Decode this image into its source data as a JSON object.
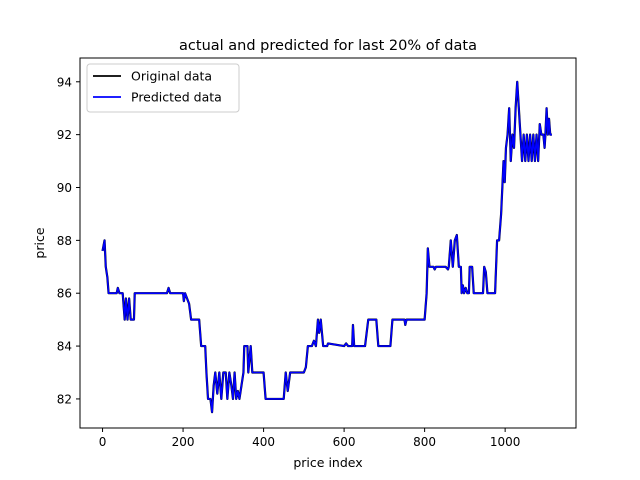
{
  "chart_data": {
    "type": "line",
    "title": "actual and predicted for last 20% of data",
    "xlabel": "price index",
    "ylabel": "price",
    "xlim": [
      -56,
      1176
    ],
    "ylim": [
      80.9,
      94.9
    ],
    "xticks": [
      0,
      200,
      400,
      600,
      800,
      1000
    ],
    "yticks": [
      82,
      84,
      86,
      88,
      90,
      92,
      94
    ],
    "grid": false,
    "legend": "top-left",
    "series": [
      {
        "name": "Original data",
        "color": "#000000",
        "points": [
          [
            0,
            87.6
          ],
          [
            5,
            88.0
          ],
          [
            8,
            87.0
          ],
          [
            12,
            86.6
          ],
          [
            15,
            86.0
          ],
          [
            35,
            86.0
          ],
          [
            38,
            86.2
          ],
          [
            42,
            86.0
          ],
          [
            50,
            86.0
          ],
          [
            55,
            85.0
          ],
          [
            58,
            85.8
          ],
          [
            62,
            85.0
          ],
          [
            66,
            85.8
          ],
          [
            70,
            85.0
          ],
          [
            78,
            85.0
          ],
          [
            80,
            86.0
          ],
          [
            160,
            86.0
          ],
          [
            164,
            86.2
          ],
          [
            168,
            86.0
          ],
          [
            200,
            86.0
          ],
          [
            202,
            85.7
          ],
          [
            205,
            86.0
          ],
          [
            215,
            85.6
          ],
          [
            220,
            85.0
          ],
          [
            240,
            85.0
          ],
          [
            245,
            84.0
          ],
          [
            255,
            84.0
          ],
          [
            258,
            83.0
          ],
          [
            262,
            82.0
          ],
          [
            268,
            82.0
          ],
          [
            272,
            81.5
          ],
          [
            276,
            82.5
          ],
          [
            280,
            83.0
          ],
          [
            285,
            82.2
          ],
          [
            290,
            83.0
          ],
          [
            295,
            82.0
          ],
          [
            300,
            83.0
          ],
          [
            306,
            83.0
          ],
          [
            310,
            82.0
          ],
          [
            315,
            83.0
          ],
          [
            320,
            82.5
          ],
          [
            324,
            82.0
          ],
          [
            328,
            83.0
          ],
          [
            332,
            82.0
          ],
          [
            336,
            82.3
          ],
          [
            340,
            82.0
          ],
          [
            350,
            83.0
          ],
          [
            352,
            84.0
          ],
          [
            360,
            84.0
          ],
          [
            362,
            83.0
          ],
          [
            368,
            84.0
          ],
          [
            372,
            83.0
          ],
          [
            400,
            83.0
          ],
          [
            405,
            82.0
          ],
          [
            450,
            82.0
          ],
          [
            455,
            83.0
          ],
          [
            460,
            82.3
          ],
          [
            466,
            83.0
          ],
          [
            500,
            83.0
          ],
          [
            505,
            83.2
          ],
          [
            510,
            84.0
          ],
          [
            520,
            84.0
          ],
          [
            525,
            84.2
          ],
          [
            530,
            84.0
          ],
          [
            535,
            85.0
          ],
          [
            538,
            84.5
          ],
          [
            542,
            85.0
          ],
          [
            548,
            84.0
          ],
          [
            558,
            84.0
          ],
          [
            560,
            84.1
          ],
          [
            600,
            84.0
          ],
          [
            605,
            84.1
          ],
          [
            610,
            84.0
          ],
          [
            620,
            84.0
          ],
          [
            622,
            84.8
          ],
          [
            625,
            84.0
          ],
          [
            652,
            84.0
          ],
          [
            660,
            85.0
          ],
          [
            680,
            85.0
          ],
          [
            685,
            84.0
          ],
          [
            715,
            84.0
          ],
          [
            720,
            85.0
          ],
          [
            750,
            85.0
          ],
          [
            752,
            84.8
          ],
          [
            755,
            85.0
          ],
          [
            800,
            85.0
          ],
          [
            805,
            86.0
          ],
          [
            808,
            87.7
          ],
          [
            812,
            87.0
          ],
          [
            822,
            87.0
          ],
          [
            825,
            86.9
          ],
          [
            828,
            87.0
          ],
          [
            852,
            87.0
          ],
          [
            858,
            86.9
          ],
          [
            860,
            87.0
          ],
          [
            865,
            88.0
          ],
          [
            870,
            87.0
          ],
          [
            875,
            88.0
          ],
          [
            880,
            88.2
          ],
          [
            885,
            87.0
          ],
          [
            890,
            87.0
          ],
          [
            892,
            86.0
          ],
          [
            895,
            86.3
          ],
          [
            898,
            86.0
          ],
          [
            902,
            86.2
          ],
          [
            906,
            86.0
          ],
          [
            910,
            86.0
          ],
          [
            912,
            87.0
          ],
          [
            918,
            87.0
          ],
          [
            922,
            86.0
          ],
          [
            945,
            86.0
          ],
          [
            948,
            87.0
          ],
          [
            952,
            86.8
          ],
          [
            956,
            86.0
          ],
          [
            975,
            86.0
          ],
          [
            980,
            88.0
          ],
          [
            985,
            88.0
          ],
          [
            990,
            89.0
          ],
          [
            993,
            90.0
          ],
          [
            996,
            91.0
          ],
          [
            999,
            90.2
          ],
          [
            1002,
            91.5
          ],
          [
            1006,
            92.0
          ],
          [
            1010,
            93.0
          ],
          [
            1014,
            91.0
          ],
          [
            1018,
            92.0
          ],
          [
            1022,
            91.5
          ],
          [
            1026,
            93.0
          ],
          [
            1030,
            94.0
          ],
          [
            1034,
            93.0
          ],
          [
            1038,
            92.0
          ],
          [
            1042,
            91.0
          ],
          [
            1046,
            92.0
          ],
          [
            1050,
            91.0
          ],
          [
            1054,
            92.0
          ],
          [
            1058,
            91.0
          ],
          [
            1062,
            92.0
          ],
          [
            1066,
            91.0
          ],
          [
            1070,
            92.0
          ],
          [
            1074,
            91.0
          ],
          [
            1078,
            92.0
          ],
          [
            1082,
            91.0
          ],
          [
            1086,
            92.4
          ],
          [
            1090,
            92.0
          ],
          [
            1095,
            92.0
          ],
          [
            1098,
            91.5
          ],
          [
            1100,
            92.0
          ],
          [
            1103,
            93.0
          ],
          [
            1106,
            92.0
          ],
          [
            1109,
            92.6
          ],
          [
            1112,
            92.0
          ],
          [
            1116,
            92.0
          ]
        ]
      },
      {
        "name": "Predicted data",
        "color": "#0000ff",
        "points": [
          [
            0,
            87.6
          ],
          [
            5,
            88.0
          ],
          [
            8,
            87.0
          ],
          [
            12,
            86.6
          ],
          [
            15,
            86.0
          ],
          [
            35,
            86.0
          ],
          [
            38,
            86.2
          ],
          [
            42,
            86.0
          ],
          [
            50,
            86.0
          ],
          [
            55,
            85.0
          ],
          [
            58,
            85.8
          ],
          [
            62,
            85.0
          ],
          [
            66,
            85.8
          ],
          [
            70,
            85.0
          ],
          [
            78,
            85.0
          ],
          [
            80,
            86.0
          ],
          [
            160,
            86.0
          ],
          [
            164,
            86.2
          ],
          [
            168,
            86.0
          ],
          [
            200,
            86.0
          ],
          [
            202,
            85.7
          ],
          [
            205,
            86.0
          ],
          [
            215,
            85.6
          ],
          [
            220,
            85.0
          ],
          [
            240,
            85.0
          ],
          [
            245,
            84.0
          ],
          [
            255,
            84.0
          ],
          [
            258,
            83.0
          ],
          [
            262,
            82.0
          ],
          [
            268,
            82.0
          ],
          [
            272,
            81.5
          ],
          [
            276,
            82.5
          ],
          [
            280,
            83.0
          ],
          [
            285,
            82.2
          ],
          [
            290,
            83.0
          ],
          [
            295,
            82.0
          ],
          [
            300,
            83.0
          ],
          [
            306,
            83.0
          ],
          [
            310,
            82.0
          ],
          [
            315,
            83.0
          ],
          [
            320,
            82.5
          ],
          [
            324,
            82.0
          ],
          [
            328,
            83.0
          ],
          [
            332,
            82.0
          ],
          [
            336,
            82.3
          ],
          [
            340,
            82.0
          ],
          [
            350,
            83.0
          ],
          [
            352,
            84.0
          ],
          [
            360,
            84.0
          ],
          [
            362,
            83.0
          ],
          [
            368,
            84.0
          ],
          [
            372,
            83.0
          ],
          [
            400,
            83.0
          ],
          [
            405,
            82.0
          ],
          [
            450,
            82.0
          ],
          [
            455,
            83.0
          ],
          [
            460,
            82.3
          ],
          [
            466,
            83.0
          ],
          [
            500,
            83.0
          ],
          [
            505,
            83.2
          ],
          [
            510,
            84.0
          ],
          [
            520,
            84.0
          ],
          [
            525,
            84.2
          ],
          [
            530,
            84.0
          ],
          [
            535,
            85.0
          ],
          [
            538,
            84.5
          ],
          [
            542,
            85.0
          ],
          [
            548,
            84.0
          ],
          [
            558,
            84.0
          ],
          [
            560,
            84.1
          ],
          [
            600,
            84.0
          ],
          [
            605,
            84.1
          ],
          [
            610,
            84.0
          ],
          [
            620,
            84.0
          ],
          [
            622,
            84.8
          ],
          [
            625,
            84.0
          ],
          [
            652,
            84.0
          ],
          [
            660,
            85.0
          ],
          [
            680,
            85.0
          ],
          [
            685,
            84.0
          ],
          [
            715,
            84.0
          ],
          [
            720,
            85.0
          ],
          [
            750,
            85.0
          ],
          [
            752,
            84.8
          ],
          [
            755,
            85.0
          ],
          [
            800,
            85.0
          ],
          [
            805,
            86.0
          ],
          [
            808,
            87.7
          ],
          [
            812,
            87.0
          ],
          [
            822,
            87.0
          ],
          [
            825,
            86.9
          ],
          [
            828,
            87.0
          ],
          [
            852,
            87.0
          ],
          [
            858,
            86.9
          ],
          [
            860,
            87.0
          ],
          [
            865,
            88.0
          ],
          [
            870,
            87.0
          ],
          [
            875,
            88.0
          ],
          [
            880,
            88.2
          ],
          [
            885,
            87.0
          ],
          [
            890,
            87.0
          ],
          [
            892,
            86.0
          ],
          [
            895,
            86.3
          ],
          [
            898,
            86.0
          ],
          [
            902,
            86.2
          ],
          [
            906,
            86.0
          ],
          [
            910,
            86.0
          ],
          [
            912,
            87.0
          ],
          [
            918,
            87.0
          ],
          [
            922,
            86.0
          ],
          [
            945,
            86.0
          ],
          [
            948,
            87.0
          ],
          [
            952,
            86.8
          ],
          [
            956,
            86.0
          ],
          [
            975,
            86.0
          ],
          [
            980,
            88.0
          ],
          [
            985,
            88.0
          ],
          [
            990,
            89.0
          ],
          [
            993,
            90.0
          ],
          [
            996,
            91.0
          ],
          [
            999,
            90.2
          ],
          [
            1002,
            91.5
          ],
          [
            1006,
            92.0
          ],
          [
            1010,
            93.0
          ],
          [
            1014,
            91.0
          ],
          [
            1018,
            92.0
          ],
          [
            1022,
            91.5
          ],
          [
            1026,
            93.0
          ],
          [
            1030,
            94.0
          ],
          [
            1034,
            93.0
          ],
          [
            1038,
            92.0
          ],
          [
            1042,
            91.0
          ],
          [
            1046,
            92.0
          ],
          [
            1050,
            91.0
          ],
          [
            1054,
            92.0
          ],
          [
            1058,
            91.0
          ],
          [
            1062,
            92.0
          ],
          [
            1066,
            91.0
          ],
          [
            1070,
            92.0
          ],
          [
            1074,
            91.0
          ],
          [
            1078,
            92.0
          ],
          [
            1082,
            91.0
          ],
          [
            1086,
            92.4
          ],
          [
            1090,
            92.0
          ],
          [
            1095,
            92.0
          ],
          [
            1098,
            91.5
          ],
          [
            1100,
            92.0
          ],
          [
            1103,
            93.0
          ],
          [
            1106,
            92.0
          ],
          [
            1109,
            92.6
          ],
          [
            1112,
            92.0
          ],
          [
            1116,
            92.0
          ]
        ]
      }
    ]
  }
}
